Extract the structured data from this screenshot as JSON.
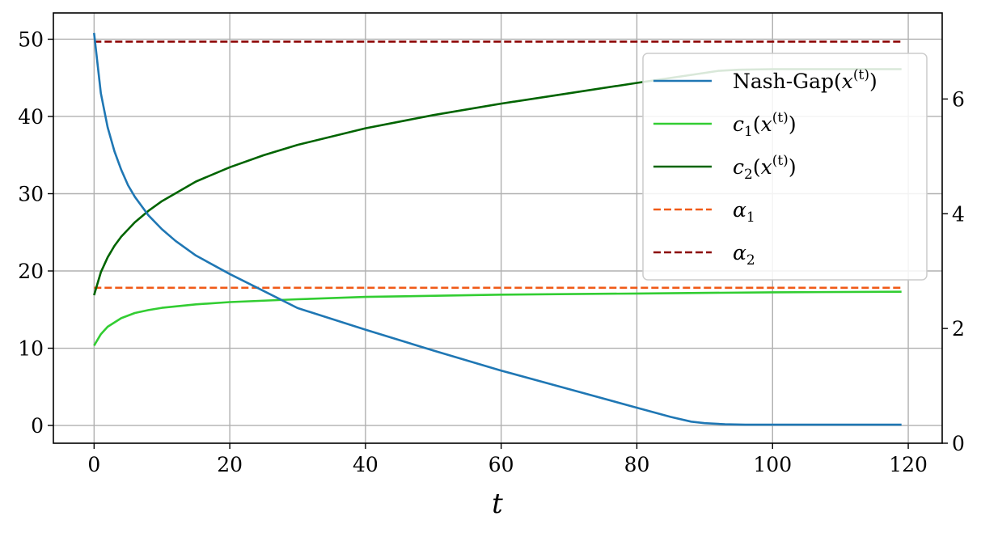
{
  "chart_data": {
    "type": "line",
    "xlabel": "t",
    "ylabel": "",
    "xlim": [
      -6,
      125
    ],
    "ylim_left": [
      -2.3,
      53.4
    ],
    "ylim_right": [
      0,
      7.5
    ],
    "x_ticks": [
      0,
      20,
      40,
      60,
      80,
      100,
      120
    ],
    "y_ticks_left": [
      0,
      10,
      20,
      30,
      40,
      50
    ],
    "y_ticks_right": [
      0,
      2,
      4,
      6
    ],
    "grid": true,
    "legend_position": "top-right",
    "series": [
      {
        "name": "Nash-Gap(x(t))",
        "axis": "left",
        "style": "solid",
        "color": "#1f77b4",
        "x": [
          0,
          1,
          2,
          3,
          4,
          5,
          6,
          8,
          10,
          12,
          15,
          20,
          25,
          30,
          40,
          50,
          60,
          70,
          80,
          85,
          88,
          90,
          93,
          96,
          100,
          110,
          119
        ],
        "y": [
          50.8,
          43.0,
          38.6,
          35.5,
          33.1,
          31.1,
          29.6,
          27.2,
          25.4,
          23.9,
          22.0,
          19.6,
          17.4,
          15.2,
          12.4,
          9.7,
          7.1,
          4.7,
          2.3,
          1.1,
          0.5,
          0.3,
          0.15,
          0.1,
          0.1,
          0.1,
          0.1
        ]
      },
      {
        "name": "c1(x(t))",
        "axis": "right",
        "style": "solid",
        "color": "#32cd32",
        "x": [
          0,
          1,
          2,
          4,
          6,
          8,
          10,
          15,
          20,
          30,
          40,
          60,
          80,
          100,
          119
        ],
        "y": [
          1.7,
          1.9,
          2.03,
          2.18,
          2.27,
          2.32,
          2.36,
          2.42,
          2.46,
          2.51,
          2.55,
          2.59,
          2.61,
          2.63,
          2.64
        ]
      },
      {
        "name": "c2(x(t))",
        "axis": "right",
        "style": "solid",
        "color": "#006400",
        "x": [
          0,
          1,
          2,
          3,
          4,
          6,
          8,
          10,
          15,
          20,
          25,
          30,
          40,
          50,
          60,
          70,
          80,
          88,
          92,
          95,
          100,
          110,
          119
        ],
        "y": [
          2.58,
          2.98,
          3.24,
          3.44,
          3.6,
          3.85,
          4.05,
          4.22,
          4.56,
          4.81,
          5.02,
          5.2,
          5.49,
          5.72,
          5.92,
          6.1,
          6.28,
          6.42,
          6.49,
          6.51,
          6.52,
          6.52,
          6.52
        ]
      },
      {
        "name": "α1",
        "axis": "right",
        "style": "dashed",
        "color": "#f05a18",
        "x": [
          0,
          119
        ],
        "y": [
          2.71,
          2.71
        ]
      },
      {
        "name": "α2",
        "axis": "right",
        "style": "dashed",
        "color": "#8b0000",
        "x": [
          0,
          119
        ],
        "y": [
          7.0,
          7.0
        ]
      }
    ]
  }
}
